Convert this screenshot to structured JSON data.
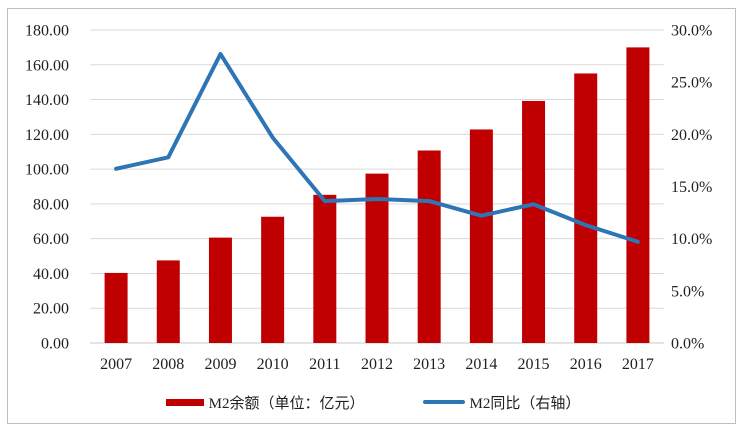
{
  "chart_data": {
    "type": "bar",
    "title": "",
    "categories": [
      "2007",
      "2008",
      "2009",
      "2010",
      "2011",
      "2012",
      "2013",
      "2014",
      "2015",
      "2016",
      "2017"
    ],
    "series": [
      {
        "name": "M2余额（单位：亿元）",
        "type": "bar",
        "axis": "left",
        "color": "#C00000",
        "values": [
          40.3,
          47.5,
          60.6,
          72.6,
          85.2,
          97.4,
          110.7,
          122.8,
          139.2,
          155.0,
          170.0
        ]
      },
      {
        "name": "M2同比（右轴）",
        "type": "line",
        "axis": "right",
        "color": "#2E75B6",
        "values": [
          16.7,
          17.8,
          27.7,
          19.7,
          13.6,
          13.8,
          13.6,
          12.2,
          13.3,
          11.3,
          9.7
        ]
      }
    ],
    "left_axis": {
      "min": 0,
      "max": 180,
      "step": 20,
      "ticks": [
        "0.00",
        "20.00",
        "40.00",
        "60.00",
        "80.00",
        "100.00",
        "120.00",
        "140.00",
        "160.00",
        "180.00"
      ]
    },
    "right_axis": {
      "min": 0,
      "max": 30,
      "step": 5,
      "ticks": [
        "0.0%",
        "5.0%",
        "10.0%",
        "15.0%",
        "20.0%",
        "25.0%",
        "30.0%"
      ]
    },
    "grid": true,
    "legend_position": "bottom"
  },
  "colors": {
    "bar": "#C00000",
    "line": "#2E75B6",
    "grid": "#D9D9D9",
    "axis_line": "#C8C8C8",
    "text": "#1F1F1F",
    "frame_border": "#BFBFBF",
    "background": "#FFFFFF"
  }
}
